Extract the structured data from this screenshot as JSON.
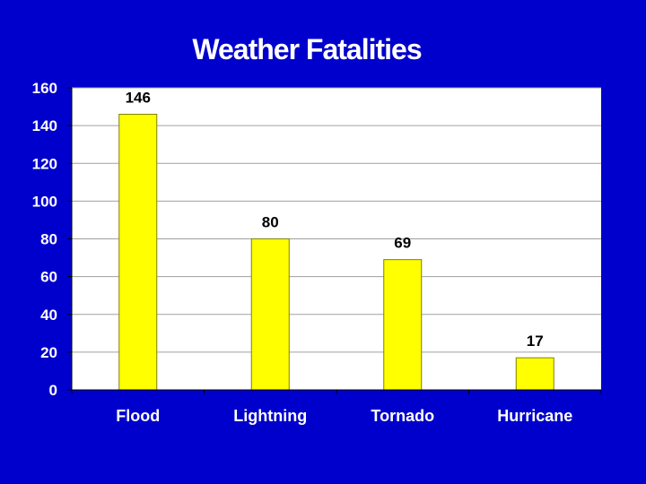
{
  "chart_data": {
    "type": "bar",
    "title": "Weather Fatalities",
    "categories": [
      "Flood",
      "Lightning",
      "Tornado",
      "Hurricane"
    ],
    "values": [
      146,
      80,
      69,
      17
    ],
    "data_labels": [
      "146",
      "80",
      "69",
      "17"
    ],
    "xlabel": "",
    "ylabel": "",
    "ylim": [
      0,
      160
    ],
    "yticks": [
      0,
      20,
      40,
      60,
      80,
      100,
      120,
      140,
      160
    ],
    "grid": true,
    "legend": "none",
    "colors": {
      "background": "#0000CC",
      "plot_area": "#FFFFFF",
      "bar_fill": "#FFFF00",
      "bar_stroke": "#808000",
      "gridline": "#A0A0A0",
      "title": "#FFFFFF",
      "axis_text": "#FFFFFF",
      "data_label": "#000000"
    }
  }
}
